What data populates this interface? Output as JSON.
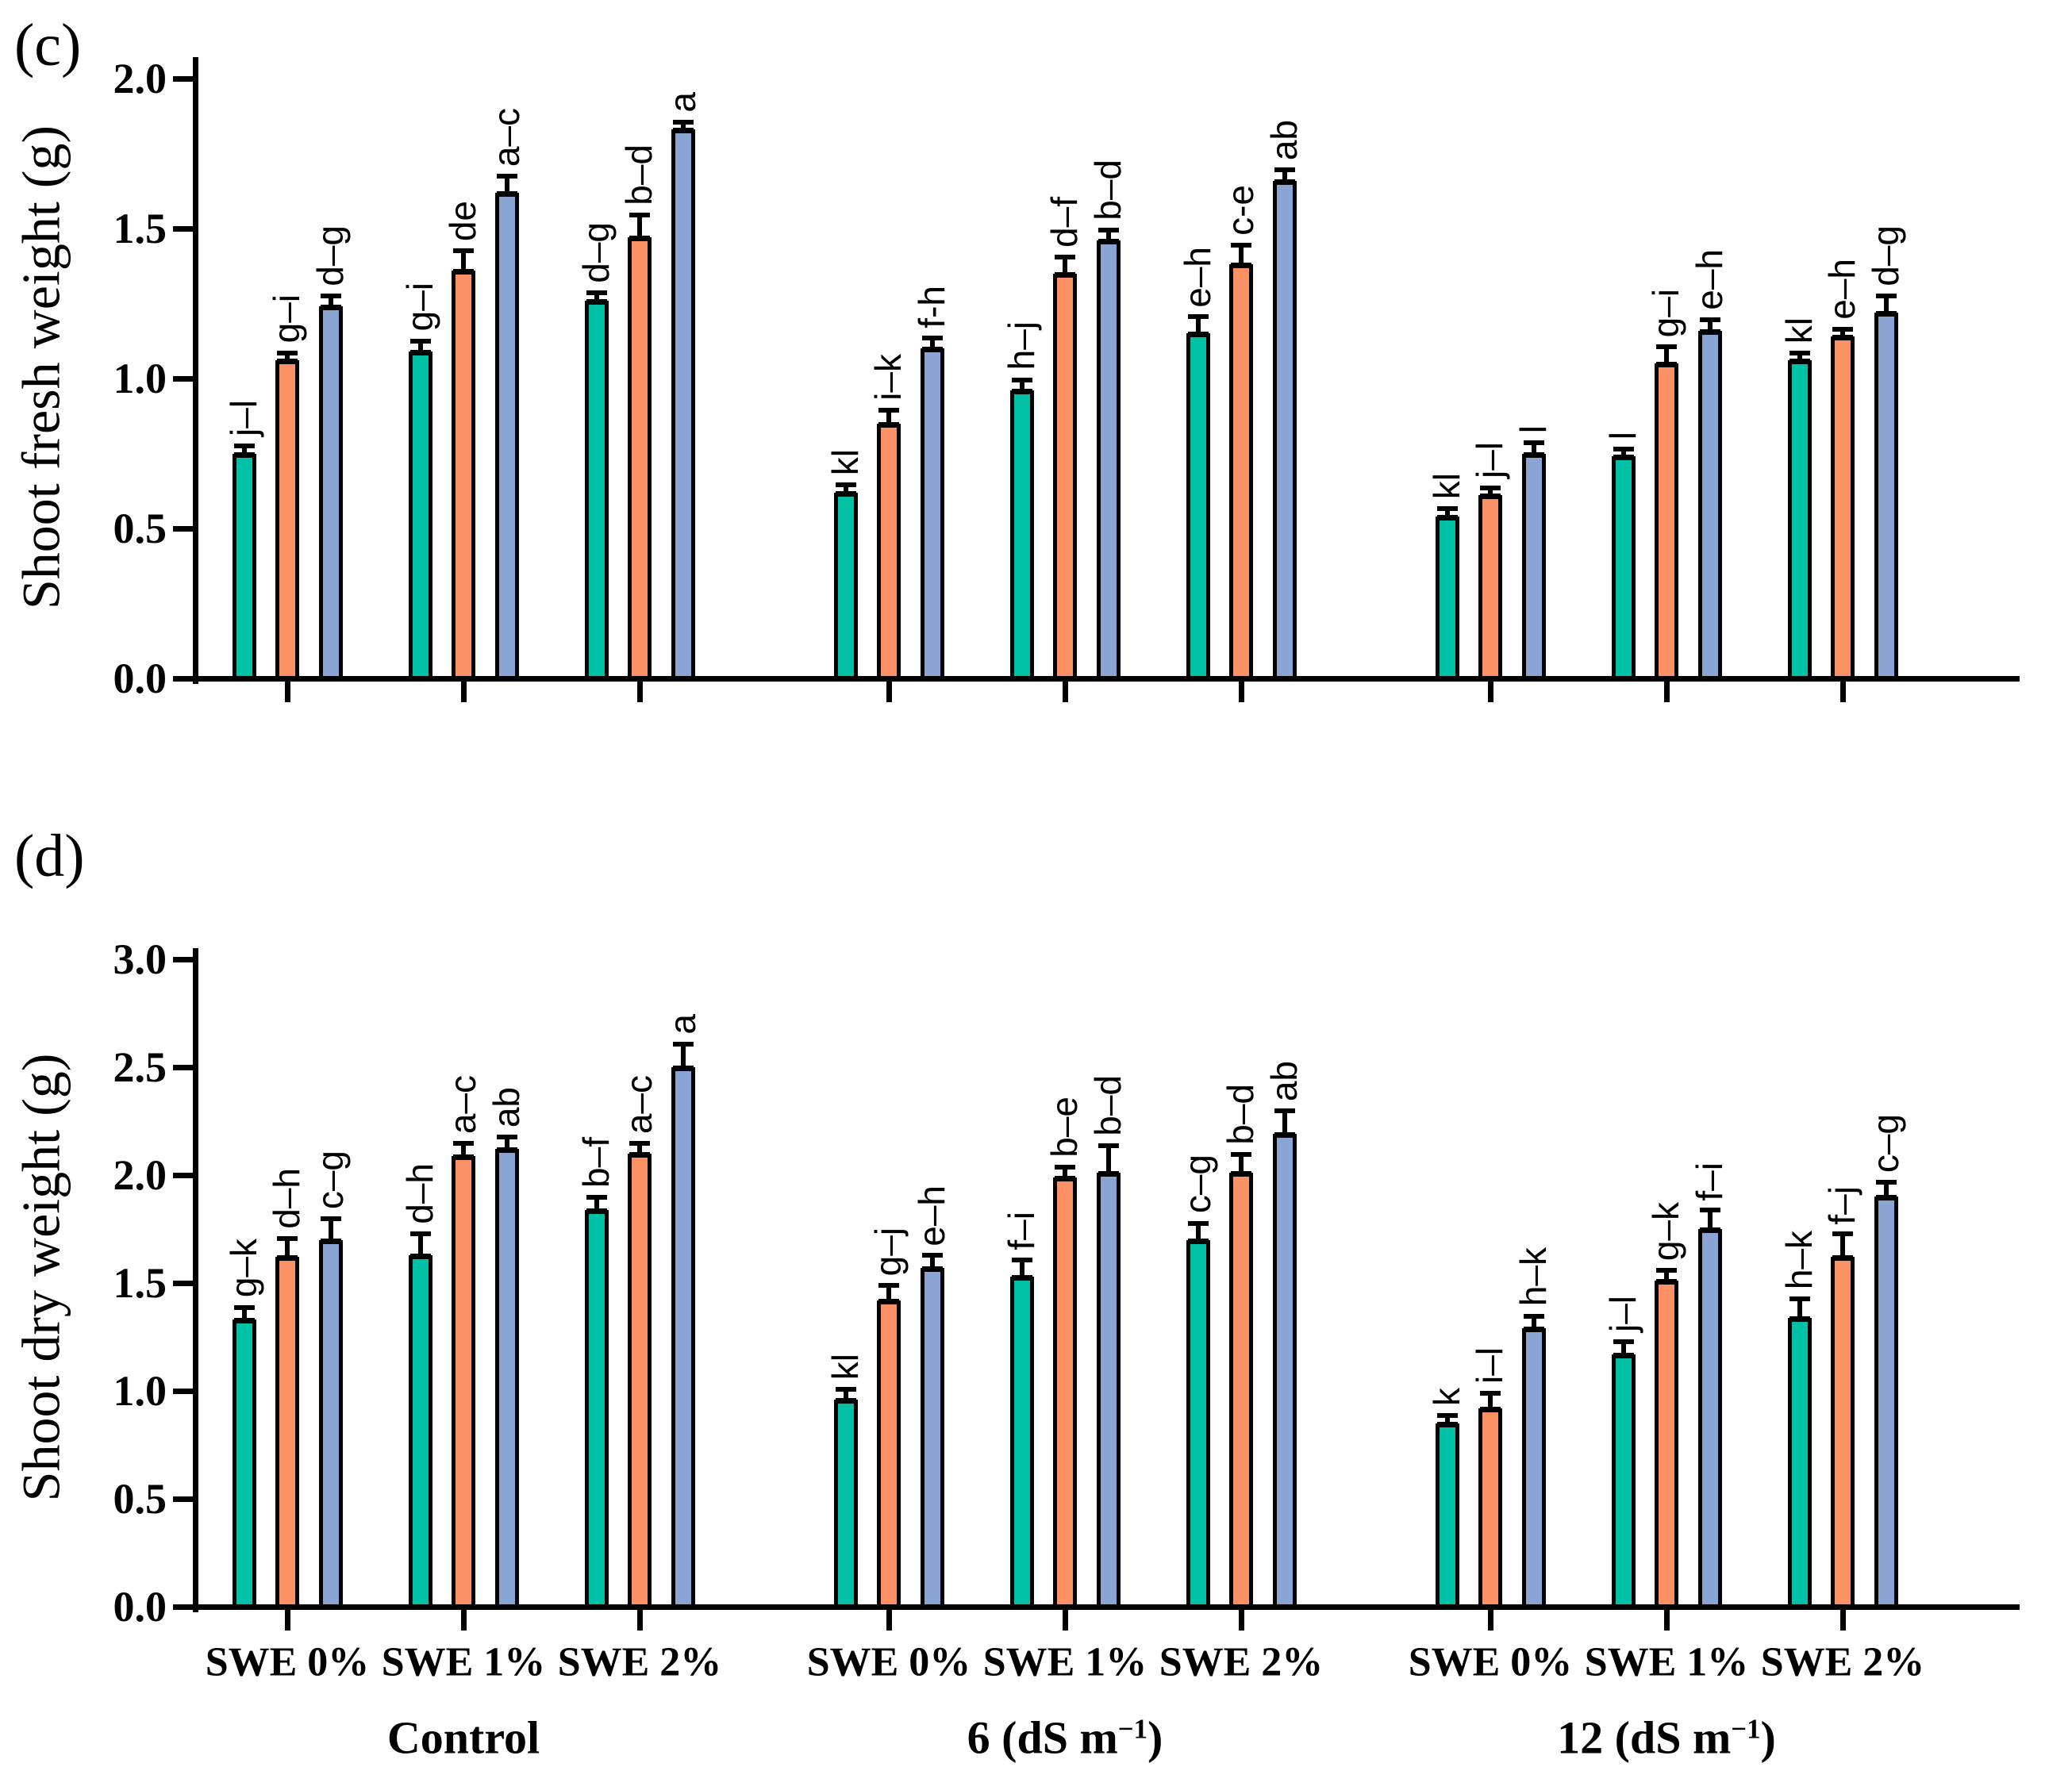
{
  "chart_data": [
    {
      "type": "bar",
      "panel_label": "(c)",
      "title": "",
      "xlabel": "",
      "ylabel": "Shoot fresh weight (g)",
      "ylim": [
        0.0,
        2.0
      ],
      "ytick_labels": [
        "0.0",
        "0.5",
        "1.0",
        "1.5",
        "2.0"
      ],
      "grid": false,
      "legend": "none",
      "show_x_tick_labels": false,
      "groups": [
        {
          "label": "Control",
          "base": "Control",
          "sup": "",
          "suffix": ""
        },
        {
          "label": "6 (dS m−1)",
          "base": "6 (dS m",
          "sup": "−1",
          "suffix": ")"
        },
        {
          "label": "12 (dS m−1)",
          "base": "12 (dS m",
          "sup": "−1",
          "suffix": ")"
        }
      ],
      "categories_per_group": [
        "SWE 0%",
        "SWE 1%",
        "SWE 2%"
      ],
      "series": [
        {
          "name": "teal-bars",
          "color": "#00C0A5",
          "values": [
            0.75,
            1.09,
            1.26,
            0.62,
            0.96,
            1.15,
            0.54,
            0.74,
            1.06
          ],
          "errors": [
            0.02,
            0.03,
            0.02,
            0.02,
            0.03,
            0.05,
            0.02,
            0.02,
            0.02
          ],
          "letters": [
            "j–l",
            "g–i",
            "d–g",
            "kl",
            "h–j",
            "e–h",
            "kl",
            "l",
            "kl"
          ]
        },
        {
          "name": "orange-bars",
          "color": "#FB9164",
          "values": [
            1.06,
            1.36,
            1.47,
            0.85,
            1.35,
            1.38,
            0.61,
            1.05,
            1.14
          ],
          "errors": [
            0.02,
            0.06,
            0.07,
            0.04,
            0.05,
            0.06,
            0.02,
            0.05,
            0.02
          ],
          "letters": [
            "g–i",
            "de",
            "b–d",
            "i–k",
            "d–f",
            "c-e",
            "j–l",
            "g–i",
            "e–h"
          ]
        },
        {
          "name": "blue-bars",
          "color": "#8AA4D4",
          "values": [
            1.24,
            1.62,
            1.83,
            1.1,
            1.46,
            1.66,
            0.75,
            1.16,
            1.22
          ],
          "errors": [
            0.03,
            0.05,
            0.02,
            0.03,
            0.03,
            0.03,
            0.03,
            0.03,
            0.05
          ],
          "letters": [
            "d–g",
            "a–c",
            "a",
            "f-h",
            "b–d",
            "ab",
            "l",
            "e–h",
            "d–g"
          ]
        }
      ]
    },
    {
      "type": "bar",
      "panel_label": "(d)",
      "title": "",
      "xlabel": "",
      "ylabel": "Shoot dry weight (g)",
      "ylim": [
        0.0,
        3.0
      ],
      "ytick_labels": [
        "0.0",
        "0.5",
        "1.0",
        "1.5",
        "2.0",
        "2.5",
        "3.0"
      ],
      "grid": false,
      "legend": "none",
      "show_x_tick_labels": true,
      "groups": [
        {
          "label": "Control",
          "base": "Control",
          "sup": "",
          "suffix": ""
        },
        {
          "label": "6 (dS m−1)",
          "base": "6 (dS m",
          "sup": "−1",
          "suffix": ")"
        },
        {
          "label": "12 (dS m−1)",
          "base": "12 (dS m",
          "sup": "−1",
          "suffix": ")"
        }
      ],
      "categories_per_group": [
        "SWE 0%",
        "SWE 1%",
        "SWE 2%"
      ],
      "series": [
        {
          "name": "teal-bars",
          "color": "#00C0A5",
          "values": [
            1.33,
            1.63,
            1.84,
            0.96,
            1.53,
            1.7,
            0.85,
            1.17,
            1.34
          ],
          "errors": [
            0.05,
            0.09,
            0.05,
            0.04,
            0.07,
            0.07,
            0.03,
            0.05,
            0.08
          ],
          "letters": [
            "g–k",
            "d–h",
            "b–f",
            "kl",
            "f–i",
            "c–g",
            "k",
            "j–l",
            "h–k"
          ]
        },
        {
          "name": "orange-bars",
          "color": "#FB9164",
          "values": [
            1.62,
            2.09,
            2.1,
            1.42,
            1.99,
            2.01,
            0.92,
            1.51,
            1.62
          ],
          "errors": [
            0.08,
            0.05,
            0.04,
            0.06,
            0.04,
            0.08,
            0.06,
            0.04,
            0.1
          ],
          "letters": [
            "d–h",
            "a–c",
            "a–c",
            "g–j",
            "b–e",
            "b–d",
            "i–l",
            "g–k",
            "f–j"
          ]
        },
        {
          "name": "blue-bars",
          "color": "#8AA4D4",
          "values": [
            1.7,
            2.12,
            2.5,
            1.57,
            2.01,
            2.19,
            1.29,
            1.75,
            1.9
          ],
          "errors": [
            0.09,
            0.05,
            0.1,
            0.05,
            0.12,
            0.1,
            0.05,
            0.08,
            0.06
          ],
          "letters": [
            "c–g",
            "ab",
            "a",
            "e–h",
            "b–d",
            "ab",
            "h–k",
            "f–i",
            "c–g"
          ]
        }
      ]
    }
  ]
}
